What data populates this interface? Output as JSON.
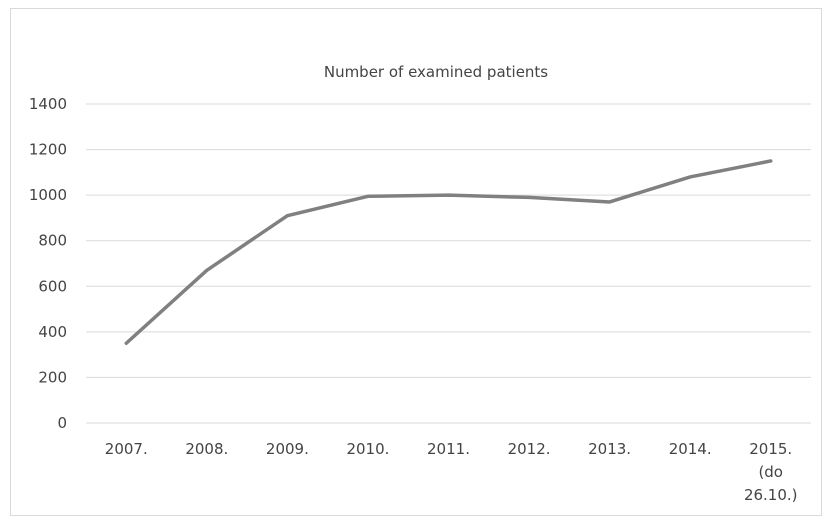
{
  "chart_data": {
    "type": "line",
    "title": "Number of examined patients",
    "xlabel": "",
    "ylabel": "",
    "categories": [
      [
        "2007."
      ],
      [
        "2008."
      ],
      [
        "2009."
      ],
      [
        "2010."
      ],
      [
        "2011."
      ],
      [
        "2012."
      ],
      [
        "2013."
      ],
      [
        "2014."
      ],
      [
        "2015.",
        "(do",
        "26.10.)"
      ]
    ],
    "series": [
      {
        "values": [
          350,
          670,
          910,
          995,
          1000,
          990,
          970,
          1080,
          1150
        ],
        "color": "#808080"
      }
    ],
    "yticks": [
      "0",
      "200",
      "400",
      "600",
      "800",
      "1000",
      "1200",
      "1400"
    ],
    "ylim": [
      0,
      1400
    ],
    "grid": true,
    "legend": "none"
  }
}
